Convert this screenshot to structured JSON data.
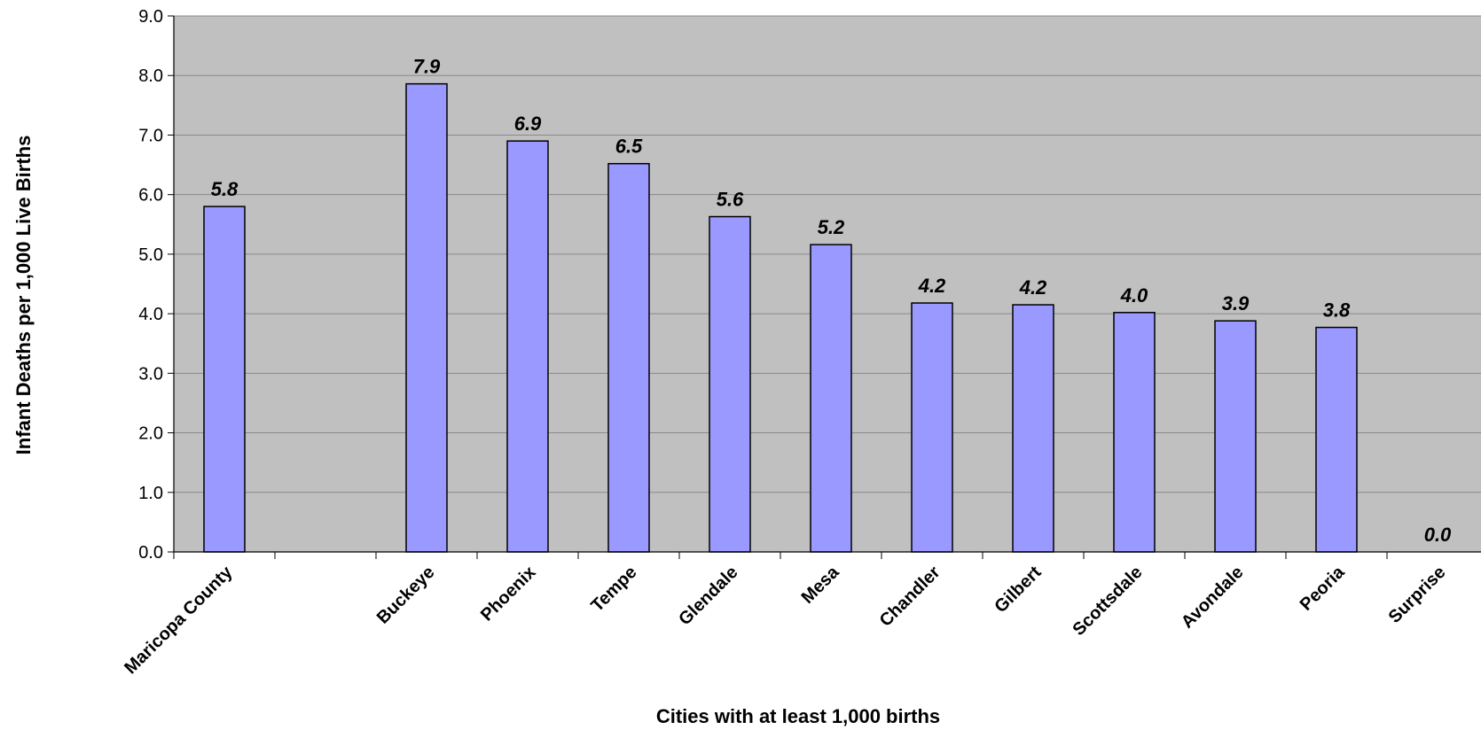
{
  "chart_data": {
    "type": "bar",
    "title": "",
    "xlabel": "Cities with at least 1,000 births",
    "ylabel": "Infant Deaths per 1,000 Live Births",
    "ylim": [
      0,
      9
    ],
    "y_ticks": [
      "0.0",
      "1.0",
      "2.0",
      "3.0",
      "4.0",
      "5.0",
      "6.0",
      "7.0",
      "8.0",
      "9.0"
    ],
    "grid": true,
    "legend": "none",
    "bar_color": "#9999ff",
    "plot_background": "#c0c0c0",
    "categories": [
      "Maricopa County",
      "",
      "Buckeye",
      "Phoenix",
      "Tempe",
      "Glendale",
      "Mesa",
      "Chandler",
      "Gilbert",
      "Scottsdale",
      "Avondale",
      "Peoria",
      "Surprise"
    ],
    "values": [
      5.8,
      null,
      7.86,
      6.9,
      6.52,
      5.63,
      5.16,
      4.18,
      4.15,
      4.02,
      3.88,
      3.77,
      0.0
    ],
    "data_labels": [
      "5.8",
      "",
      "7.9",
      "6.9",
      "6.5",
      "5.6",
      "5.2",
      "4.2",
      "4.2",
      "4.0",
      "3.9",
      "3.8",
      "0.0"
    ]
  }
}
